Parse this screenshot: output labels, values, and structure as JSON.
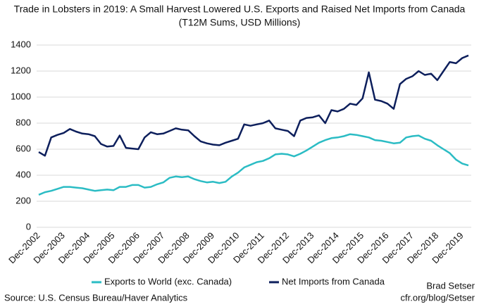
{
  "chart_data": {
    "type": "line",
    "title": "Trade in Lobsters in 2019: A Small Harvest Lowered U.S. Exports and Raised Net Imports from Canada",
    "subtitle": "(T12M Sums, USD Millions)",
    "source": "Source: U.S. Census Bureau/Haver Analytics",
    "credit": [
      "Brad Setser",
      "cfr.org/blog/Setser"
    ],
    "categories": [
      "Dec-2002",
      null,
      null,
      null,
      "Dec-2003",
      null,
      null,
      null,
      "Dec-2004",
      null,
      null,
      null,
      "Dec-2005",
      null,
      null,
      null,
      "Dec-2006",
      null,
      null,
      null,
      "Dec-2007",
      null,
      null,
      null,
      "Dec-2008",
      null,
      null,
      null,
      "Dec-2009",
      null,
      null,
      null,
      "Dec-2010",
      null,
      null,
      null,
      "Dec-2011",
      null,
      null,
      null,
      "Dec-2012",
      null,
      null,
      null,
      "Dec-2013",
      null,
      null,
      null,
      "Dec-2014",
      null,
      null,
      null,
      "Dec-2015",
      null,
      null,
      null,
      "Dec-2016",
      null,
      null,
      null,
      "Dec-2017",
      null,
      null,
      null,
      "Dec-2018",
      null,
      null,
      null,
      "Dec-2019",
      null
    ],
    "series": [
      {
        "name": "Exports to World (exc. Canada)",
        "color": "#2bbcc4",
        "values": [
          250,
          270,
          280,
          295,
          310,
          310,
          305,
          300,
          290,
          280,
          285,
          290,
          285,
          310,
          310,
          325,
          325,
          305,
          310,
          330,
          345,
          380,
          390,
          385,
          390,
          370,
          355,
          345,
          350,
          340,
          350,
          390,
          420,
          460,
          480,
          500,
          510,
          530,
          560,
          565,
          560,
          545,
          565,
          590,
          620,
          650,
          670,
          685,
          690,
          700,
          715,
          710,
          700,
          690,
          670,
          665,
          655,
          645,
          650,
          690,
          700,
          705,
          680,
          665,
          630,
          600,
          570,
          520,
          490,
          475
        ]
      },
      {
        "name": "Net Imports from Canada",
        "color": "#0d1f5c",
        "values": [
          578,
          550,
          690,
          710,
          725,
          755,
          735,
          720,
          715,
          700,
          640,
          620,
          625,
          705,
          610,
          605,
          600,
          690,
          730,
          715,
          720,
          740,
          760,
          750,
          745,
          700,
          660,
          645,
          635,
          630,
          650,
          665,
          680,
          790,
          780,
          790,
          800,
          820,
          760,
          750,
          740,
          700,
          820,
          840,
          845,
          860,
          800,
          900,
          890,
          910,
          950,
          940,
          990,
          1190,
          980,
          970,
          950,
          910,
          1100,
          1140,
          1160,
          1200,
          1170,
          1180,
          1130,
          1200,
          1270,
          1260,
          1300,
          1320
        ]
      }
    ],
    "ylim": [
      0,
      1400
    ],
    "yticks": [
      0,
      200,
      400,
      600,
      800,
      1000,
      1200,
      1400
    ],
    "grid": true
  }
}
